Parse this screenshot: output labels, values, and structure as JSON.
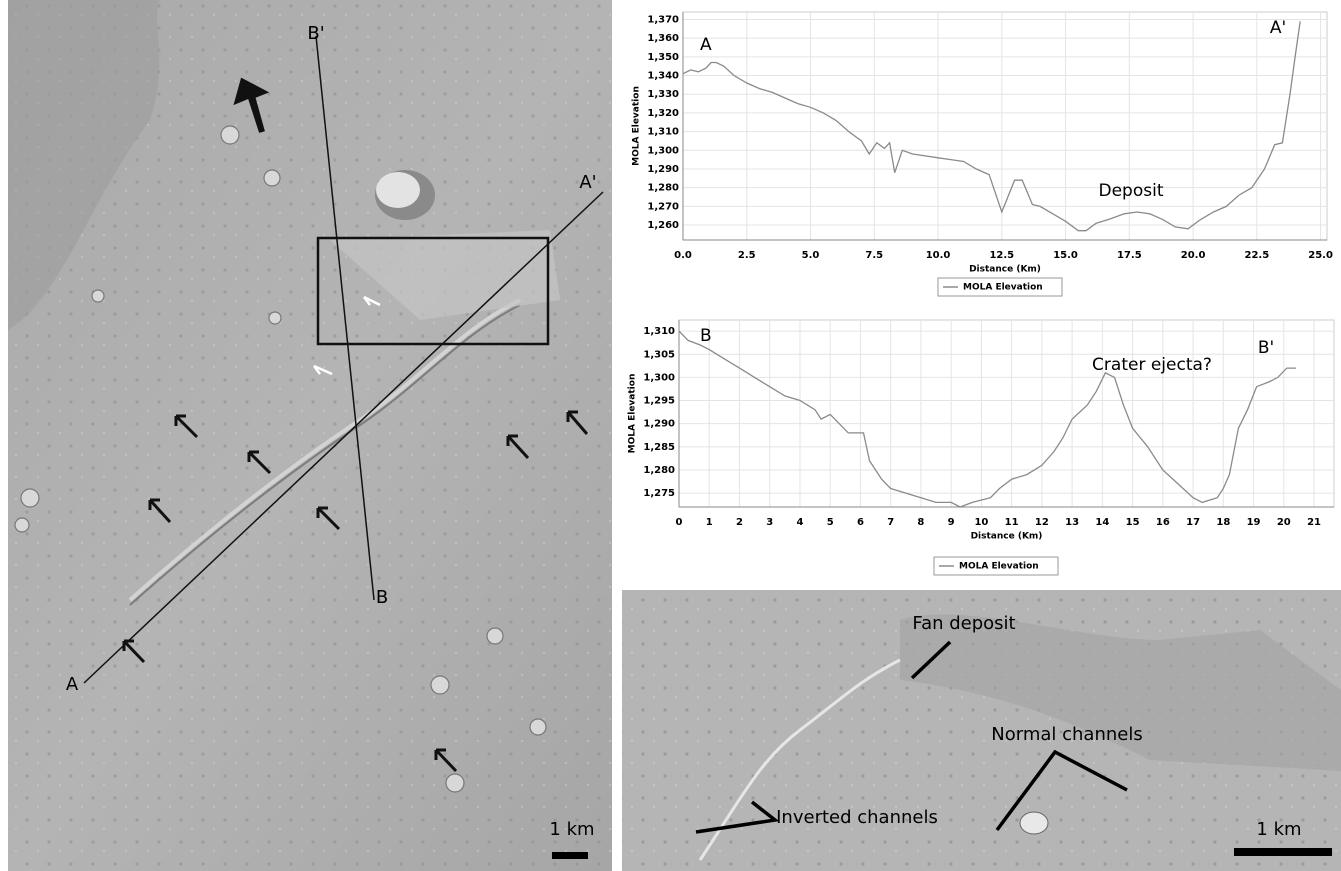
{
  "chart_data": [
    {
      "type": "line",
      "xlabel": "Distance (Km)",
      "ylabel": "MOLA Elevation",
      "xlim": [
        0,
        25.25
      ],
      "ylim": [
        1252,
        1374
      ],
      "grid": true,
      "xticks": [
        {
          "value": 0,
          "label": "0.0"
        },
        {
          "value": 2.5,
          "label": "2.5"
        },
        {
          "value": 5,
          "label": "5.0"
        },
        {
          "value": 7.5,
          "label": "7.5"
        },
        {
          "value": 10,
          "label": "10.0"
        },
        {
          "value": 12.5,
          "label": "12.5"
        },
        {
          "value": 15,
          "label": "15.0"
        },
        {
          "value": 17.5,
          "label": "17.5"
        },
        {
          "value": 20,
          "label": "20.0"
        },
        {
          "value": 22.5,
          "label": "22.5"
        },
        {
          "value": 25,
          "label": "25.0"
        }
      ],
      "yticks": [
        {
          "value": 1260,
          "label": "1,260"
        },
        {
          "value": 1270,
          "label": "1,270"
        },
        {
          "value": 1280,
          "label": "1,280"
        },
        {
          "value": 1290,
          "label": "1,290"
        },
        {
          "value": 1300,
          "label": "1,300"
        },
        {
          "value": 1310,
          "label": "1,310"
        },
        {
          "value": 1320,
          "label": "1,320"
        },
        {
          "value": 1330,
          "label": "1,330"
        },
        {
          "value": 1340,
          "label": "1,340"
        },
        {
          "value": 1350,
          "label": "1,350"
        },
        {
          "value": 1360,
          "label": "1,360"
        },
        {
          "value": 1370,
          "label": "1,370"
        }
      ],
      "annotations": [
        "A",
        "A'",
        "Deposit"
      ],
      "series": [
        {
          "name": "MOLA Elevation",
          "color": "#8a8a8a",
          "x": [
            0,
            0.3,
            0.6,
            0.9,
            1.1,
            1.3,
            1.6,
            2.0,
            2.5,
            3.0,
            3.5,
            4.0,
            4.5,
            5.0,
            5.5,
            6.0,
            6.5,
            7.0,
            7.3,
            7.6,
            7.9,
            8.1,
            8.3,
            8.6,
            9.0,
            9.5,
            10.0,
            10.5,
            11.0,
            11.5,
            12.0,
            12.5,
            13.0,
            13.3,
            13.7,
            14.0,
            14.5,
            15.0,
            15.5,
            15.8,
            16.2,
            16.7,
            17.3,
            17.8,
            18.3,
            18.8,
            19.3,
            19.8,
            20.3,
            20.8,
            21.3,
            21.8,
            22.3,
            22.8,
            23.2,
            23.5,
            23.8,
            24.0,
            24.2
          ],
          "values": [
            1341,
            1343,
            1342,
            1344,
            1347,
            1347,
            1345,
            1340,
            1336,
            1333,
            1331,
            1328,
            1325,
            1323,
            1320,
            1316,
            1310,
            1305,
            1298,
            1304,
            1301,
            1304,
            1288,
            1300,
            1298,
            1297,
            1296,
            1295,
            1294,
            1290,
            1287,
            1267,
            1284,
            1284,
            1271,
            1270,
            1266,
            1262,
            1257,
            1257,
            1261,
            1263,
            1266,
            1267,
            1266,
            1263,
            1259,
            1258,
            1263,
            1267,
            1270,
            1276,
            1280,
            1290,
            1303,
            1304,
            1330,
            1350,
            1369
          ]
        }
      ]
    },
    {
      "type": "line",
      "xlabel": "Distance (Km)",
      "ylabel": "MOLA Elevation",
      "xlim": [
        0,
        21.66
      ],
      "ylim": [
        1272,
        1312.4
      ],
      "grid": true,
      "xticks": [
        0,
        1,
        2,
        3,
        4,
        5,
        6,
        7,
        8,
        9,
        10,
        11,
        12,
        13,
        14,
        15,
        16,
        17,
        18,
        19,
        20,
        21
      ],
      "yticks": [
        {
          "value": 1275,
          "label": "1,275"
        },
        {
          "value": 1280,
          "label": "1,280"
        },
        {
          "value": 1285,
          "label": "1,285"
        },
        {
          "value": 1290,
          "label": "1,290"
        },
        {
          "value": 1295,
          "label": "1,295"
        },
        {
          "value": 1300,
          "label": "1,300"
        },
        {
          "value": 1305,
          "label": "1,305"
        },
        {
          "value": 1310,
          "label": "1,310"
        }
      ],
      "annotations": [
        "B",
        "B'",
        "Crater ejecta?"
      ],
      "series": [
        {
          "name": "MOLA Elevation",
          "color": "#8a8a8a",
          "x": [
            0,
            0.3,
            0.7,
            1.0,
            1.5,
            2,
            2.5,
            3,
            3.5,
            4,
            4.5,
            4.7,
            5,
            5.3,
            5.6,
            6.1,
            6.3,
            6.7,
            7,
            7.5,
            8,
            8.5,
            9,
            9.3,
            9.7,
            10.3,
            10.6,
            11,
            11.5,
            12,
            12.4,
            12.7,
            13,
            13.5,
            13.8,
            14.1,
            14.4,
            14.7,
            15,
            15.5,
            16,
            16.5,
            17,
            17.3,
            17.8,
            18,
            18.2,
            18.5,
            18.8,
            19.1,
            19.5,
            19.8,
            20.1,
            20.4
          ],
          "values": [
            1310,
            1308,
            1307,
            1306,
            1304,
            1302,
            1300,
            1298,
            1296,
            1295,
            1293,
            1291,
            1292,
            1290,
            1288,
            1288,
            1282,
            1278,
            1276,
            1275,
            1274,
            1273,
            1273,
            1272,
            1273,
            1274,
            1276,
            1278,
            1279,
            1281,
            1284,
            1287,
            1291,
            1294,
            1297,
            1301,
            1300,
            1294,
            1289,
            1285,
            1280,
            1277,
            1274,
            1273,
            1274,
            1276,
            1279,
            1289,
            1293,
            1298,
            1299,
            1300,
            1302,
            1302
          ]
        }
      ]
    }
  ],
  "images": [
    {
      "labels": [
        "B'",
        "A'",
        "B",
        "A",
        "1 km"
      ]
    },
    {
      "labels": [
        "Fan deposit",
        "Normal channels",
        "Inverted channels",
        "1 km"
      ]
    }
  ]
}
